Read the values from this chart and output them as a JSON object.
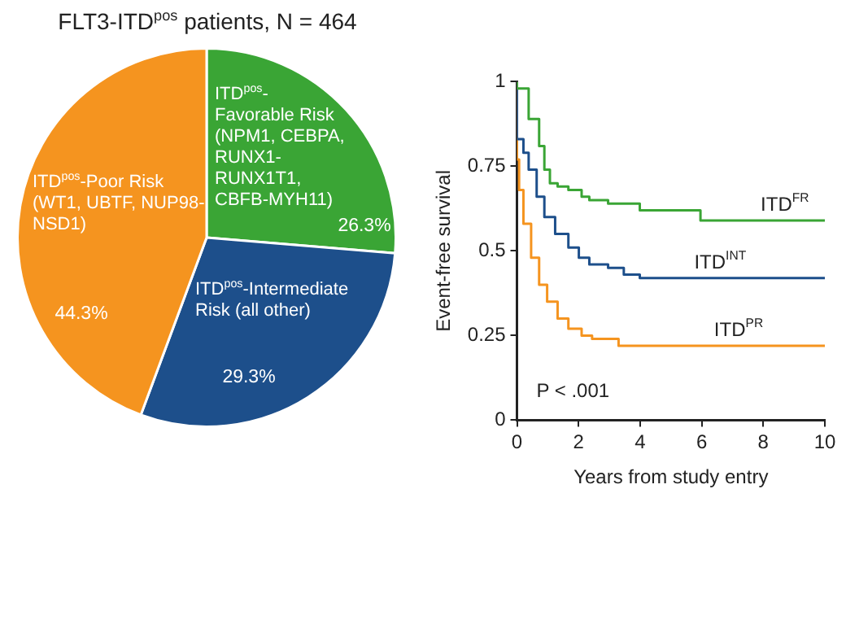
{
  "chart_data": [
    {
      "type": "pie",
      "title": "FLT3-ITD$^{pos}$ patients, N = 464",
      "categories": [
        "ITD$^{pos}$-Favorable Risk (NPM1, CEBPA, RUNX1-RUNX1T1, CBFB-MYH11)",
        "ITD$^{pos}$-Intermediate Risk (all other)",
        "ITD$^{pos}$-Poor Risk (WT1, UBTF, NUP98-NSD1)"
      ],
      "values": [
        26.3,
        29.3,
        44.3
      ],
      "colors": [
        "#3aa535",
        "#1d4f8b",
        "#f5941f"
      ],
      "value_labels": [
        "26.3%",
        "29.3%",
        "44.3%"
      ]
    },
    {
      "type": "step",
      "xlabel": "Years from study entry",
      "ylabel": "Event-free survival",
      "xlim": [
        0,
        10
      ],
      "ylim": [
        0,
        1
      ],
      "xticks": [
        0,
        2,
        4,
        6,
        8,
        10
      ],
      "yticks": [
        0,
        0.25,
        0.5,
        0.75,
        1
      ],
      "grid": false,
      "annotations": [
        "P < .001"
      ],
      "series": [
        {
          "name": "ITD$^{FR}$",
          "color": "#3aa535",
          "x": [
            0,
            0.38,
            0.72,
            0.89,
            1.07,
            1.32,
            1.67,
            2.1,
            2.35,
            2.96,
            3.99,
            5.96,
            7.68,
            10
          ],
          "values": [
            1,
            0.98,
            0.89,
            0.81,
            0.74,
            0.7,
            0.69,
            0.68,
            0.66,
            0.65,
            0.64,
            0.62,
            0.59,
            0.59
          ]
        },
        {
          "name": "ITD$^{INT}$",
          "color": "#1d4f8b",
          "x": [
            0,
            0.21,
            0.38,
            0.64,
            0.89,
            1.24,
            1.67,
            2.01,
            2.35,
            2.96,
            3.47,
            3.99,
            4.5,
            10
          ],
          "values": [
            1,
            0.83,
            0.79,
            0.74,
            0.66,
            0.6,
            0.55,
            0.51,
            0.48,
            0.46,
            0.45,
            0.43,
            0.42,
            0.42
          ]
        },
        {
          "name": "ITD$^{PR}$",
          "color": "#f5941f",
          "x": [
            0,
            0.07,
            0.21,
            0.46,
            0.72,
            0.98,
            1.32,
            1.67,
            2.1,
            2.44,
            3.3,
            4.33,
            10
          ],
          "values": [
            1,
            0.77,
            0.68,
            0.58,
            0.48,
            0.4,
            0.35,
            0.3,
            0.27,
            0.25,
            0.24,
            0.22,
            0.22
          ]
        }
      ]
    }
  ]
}
